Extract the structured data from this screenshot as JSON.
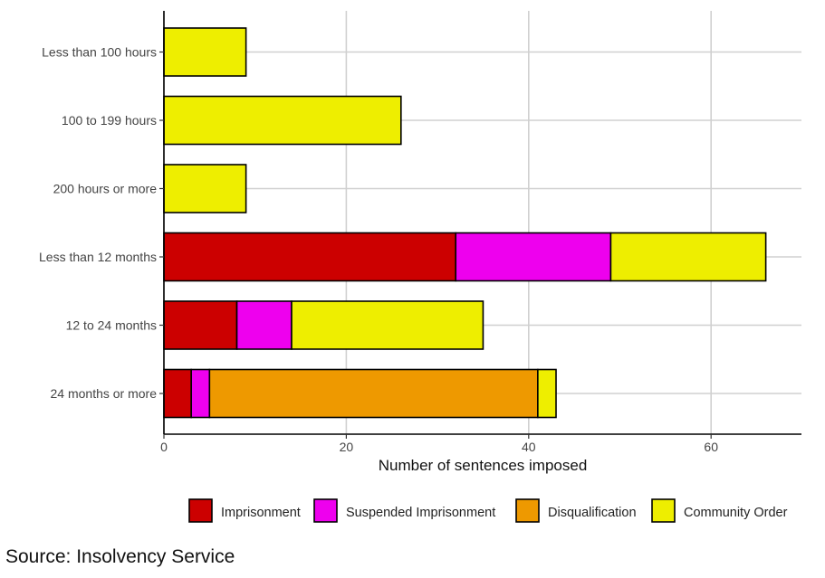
{
  "chart_data": {
    "type": "bar",
    "orientation": "horizontal",
    "stacked": true,
    "categories": [
      "Less than 100 hours",
      "100 to 199 hours",
      "200 hours or more",
      "Less than 12 months",
      "12 to 24 months",
      "24 months or more"
    ],
    "series": [
      {
        "name": "Imprisonment",
        "color": "#cc0000",
        "values": [
          0,
          0,
          0,
          32,
          8,
          3
        ]
      },
      {
        "name": "Suspended Imprisonment",
        "color": "#ee00ee",
        "values": [
          0,
          0,
          0,
          17,
          6,
          2
        ]
      },
      {
        "name": "Disqualification",
        "color": "#ee9900",
        "values": [
          0,
          0,
          0,
          0,
          0,
          36
        ]
      },
      {
        "name": "Community Order",
        "color": "#eeee00",
        "values": [
          9,
          26,
          9,
          17,
          21,
          2
        ]
      }
    ],
    "xlabel": "Number of sentences imposed",
    "ylabel": "",
    "xlim": [
      0,
      70
    ],
    "xticks": [
      0,
      20,
      40,
      60
    ],
    "grid": true,
    "legend_position": "bottom"
  },
  "source": "Source: Insolvency Service"
}
